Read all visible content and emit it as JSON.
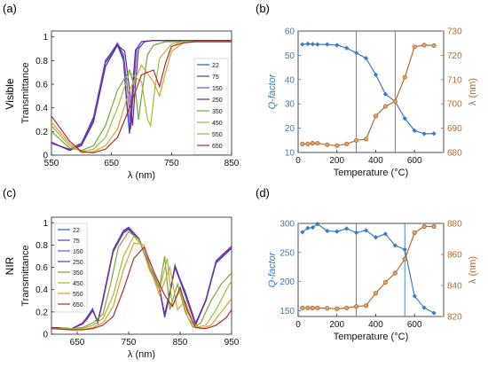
{
  "figure": {
    "row_labels": [
      "Visible",
      "NIR"
    ]
  },
  "chart_data": [
    {
      "panel": "(a)",
      "type": "line",
      "xlabel": "λ (nm)",
      "ylabel": "Transmittance",
      "xlim": [
        550,
        850
      ],
      "ylim": [
        0,
        1.05
      ],
      "xticks": [
        550,
        650,
        750,
        850
      ],
      "yticks": [
        0,
        0.2,
        0.4,
        0.6,
        0.8,
        1
      ],
      "ytick_labels": [
        "0",
        "0.2",
        "0.4",
        "0.6",
        "0.8",
        "1"
      ],
      "legend": "right",
      "series": [
        {
          "name": "22",
          "color": "#1f5fbf",
          "x": [
            550,
            580,
            600,
            620,
            640,
            660,
            670,
            675,
            680,
            685,
            690,
            700,
            720,
            750,
            800,
            850
          ],
          "y": [
            0.1,
            0.05,
            0.1,
            0.3,
            0.78,
            0.93,
            0.8,
            0.45,
            0.18,
            0.55,
            0.88,
            0.96,
            0.97,
            0.97,
            0.97,
            0.97
          ]
        },
        {
          "name": "75",
          "color": "#3f3f9f",
          "x": [
            550,
            580,
            600,
            620,
            640,
            660,
            670,
            675,
            680,
            685,
            690,
            700,
            720,
            750,
            800,
            850
          ],
          "y": [
            0.1,
            0.05,
            0.1,
            0.32,
            0.8,
            0.94,
            0.82,
            0.48,
            0.2,
            0.57,
            0.89,
            0.96,
            0.97,
            0.97,
            0.97,
            0.97
          ]
        },
        {
          "name": "150",
          "color": "#8a3fc8",
          "x": [
            550,
            580,
            600,
            620,
            640,
            660,
            670,
            678,
            682,
            687,
            692,
            700,
            720,
            750,
            800,
            850
          ],
          "y": [
            0.1,
            0.05,
            0.09,
            0.3,
            0.79,
            0.95,
            0.85,
            0.5,
            0.22,
            0.58,
            0.9,
            0.96,
            0.97,
            0.97,
            0.97,
            0.97
          ]
        },
        {
          "name": "250",
          "color": "#5a2b9a",
          "x": [
            550,
            580,
            600,
            620,
            640,
            660,
            672,
            680,
            685,
            690,
            695,
            705,
            720,
            750,
            800,
            850
          ],
          "y": [
            0.11,
            0.04,
            0.08,
            0.28,
            0.75,
            0.93,
            0.88,
            0.55,
            0.25,
            0.6,
            0.9,
            0.96,
            0.97,
            0.97,
            0.97,
            0.97
          ]
        },
        {
          "name": "350",
          "color": "#6fa83a",
          "x": [
            550,
            580,
            600,
            620,
            640,
            660,
            680,
            690,
            695,
            700,
            710,
            720,
            740,
            760,
            800,
            850
          ],
          "y": [
            0.2,
            0.06,
            0.04,
            0.08,
            0.25,
            0.55,
            0.72,
            0.55,
            0.3,
            0.5,
            0.85,
            0.93,
            0.96,
            0.96,
            0.96,
            0.96
          ]
        },
        {
          "name": "450",
          "color": "#a8b83a",
          "x": [
            550,
            580,
            600,
            620,
            640,
            660,
            680,
            700,
            710,
            715,
            722,
            730,
            750,
            770,
            800,
            850
          ],
          "y": [
            0.25,
            0.08,
            0.03,
            0.05,
            0.15,
            0.4,
            0.7,
            0.62,
            0.3,
            0.25,
            0.55,
            0.82,
            0.94,
            0.96,
            0.96,
            0.96
          ]
        },
        {
          "name": "550",
          "color": "#d8a02a",
          "x": [
            550,
            580,
            600,
            620,
            640,
            660,
            680,
            700,
            720,
            730,
            740,
            750,
            770,
            790,
            820,
            850
          ],
          "y": [
            0.28,
            0.1,
            0.02,
            0.03,
            0.08,
            0.22,
            0.55,
            0.76,
            0.62,
            0.5,
            0.7,
            0.88,
            0.95,
            0.96,
            0.96,
            0.96
          ]
        },
        {
          "name": "650",
          "color": "#b22a2a",
          "x": [
            550,
            580,
            600,
            620,
            640,
            660,
            680,
            700,
            720,
            730,
            740,
            750,
            770,
            790,
            820,
            850
          ],
          "y": [
            0.33,
            0.12,
            0.03,
            0.02,
            0.05,
            0.15,
            0.4,
            0.68,
            0.72,
            0.58,
            0.78,
            0.92,
            0.95,
            0.96,
            0.96,
            0.96
          ]
        }
      ]
    },
    {
      "panel": "(b)",
      "type": "line",
      "xlabel": "Temperature (°C)",
      "ylabel_left": "Q-factor",
      "ylabel_right": "λ (nm)",
      "xlim": [
        0,
        750
      ],
      "xticks": [
        0,
        200,
        400,
        600
      ],
      "ylim_left": [
        10,
        60
      ],
      "yticks_left": [
        10,
        20,
        30,
        40,
        50,
        60
      ],
      "ylim_right": [
        680,
        730
      ],
      "yticks_right": [
        680,
        690,
        700,
        710,
        720,
        730
      ],
      "vlines": [
        300,
        500
      ],
      "series": [
        {
          "name": "Q-factor",
          "axis": "left",
          "color": "#3a78c8",
          "marker": "diamond",
          "x": [
            22,
            50,
            75,
            100,
            150,
            200,
            250,
            300,
            350,
            400,
            450,
            500,
            550,
            600,
            650,
            700
          ],
          "y": [
            54.5,
            54.7,
            54.6,
            54.5,
            54.5,
            54.2,
            53.0,
            51.0,
            48.8,
            42.0,
            34.0,
            31.0,
            24.0,
            19.0,
            17.7,
            17.8
          ]
        },
        {
          "name": "λ",
          "axis": "right",
          "color": "#b86a2e",
          "marker": "circle",
          "x": [
            22,
            50,
            75,
            100,
            150,
            200,
            250,
            300,
            350,
            400,
            450,
            500,
            550,
            600,
            650,
            700
          ],
          "y": [
            683.5,
            683.5,
            683.8,
            683.8,
            683.2,
            682.8,
            683.5,
            685.0,
            685.5,
            695.0,
            699.0,
            701.0,
            711.0,
            723.5,
            724.2,
            724.0
          ]
        }
      ]
    },
    {
      "panel": "(c)",
      "type": "line",
      "xlabel": "λ (nm)",
      "ylabel": "Transmittance",
      "xlim": [
        600,
        950
      ],
      "ylim": [
        0,
        1.05
      ],
      "xticks": [
        650,
        750,
        850,
        950
      ],
      "yticks": [
        0,
        0.2,
        0.4,
        0.6,
        0.8,
        1
      ],
      "ytick_labels": [
        "0",
        "0.2",
        "0.4",
        "0.6",
        "0.8",
        "1"
      ],
      "legend": "upper-left",
      "series": [
        {
          "name": "22",
          "color": "#1f5fbf",
          "x": [
            600,
            640,
            660,
            670,
            680,
            690,
            700,
            720,
            740,
            750,
            770,
            790,
            810,
            820,
            830,
            840,
            860,
            880,
            900,
            920,
            950
          ],
          "y": [
            0.06,
            0.05,
            0.1,
            0.15,
            0.22,
            0.1,
            0.3,
            0.75,
            0.92,
            0.95,
            0.85,
            0.6,
            0.4,
            0.15,
            0.35,
            0.6,
            0.35,
            0.08,
            0.3,
            0.65,
            0.78
          ]
        },
        {
          "name": "75",
          "color": "#4a3fa8",
          "x": [
            600,
            640,
            660,
            670,
            680,
            690,
            700,
            720,
            740,
            750,
            770,
            790,
            810,
            820,
            830,
            840,
            860,
            880,
            900,
            920,
            950
          ],
          "y": [
            0.06,
            0.05,
            0.1,
            0.16,
            0.23,
            0.1,
            0.32,
            0.76,
            0.93,
            0.96,
            0.86,
            0.62,
            0.42,
            0.16,
            0.36,
            0.62,
            0.36,
            0.08,
            0.31,
            0.66,
            0.79
          ]
        },
        {
          "name": "150",
          "color": "#8a3fc8",
          "x": [
            600,
            640,
            660,
            670,
            680,
            690,
            700,
            720,
            740,
            750,
            770,
            790,
            810,
            820,
            830,
            840,
            860,
            880,
            900,
            920,
            950
          ],
          "y": [
            0.06,
            0.05,
            0.1,
            0.15,
            0.22,
            0.11,
            0.31,
            0.75,
            0.92,
            0.95,
            0.86,
            0.61,
            0.41,
            0.17,
            0.37,
            0.61,
            0.37,
            0.09,
            0.31,
            0.65,
            0.78
          ]
        },
        {
          "name": "250",
          "color": "#6a2e9e",
          "x": [
            600,
            640,
            660,
            670,
            680,
            690,
            700,
            720,
            740,
            750,
            770,
            790,
            810,
            820,
            830,
            840,
            860,
            880,
            900,
            920,
            950
          ],
          "y": [
            0.06,
            0.05,
            0.09,
            0.14,
            0.21,
            0.12,
            0.3,
            0.74,
            0.91,
            0.94,
            0.85,
            0.6,
            0.4,
            0.18,
            0.38,
            0.6,
            0.38,
            0.1,
            0.3,
            0.64,
            0.77
          ]
        },
        {
          "name": "350",
          "color": "#7aa83a",
          "x": [
            600,
            640,
            660,
            680,
            700,
            715,
            730,
            750,
            770,
            790,
            810,
            820,
            830,
            845,
            860,
            875,
            890,
            910,
            930,
            950
          ],
          "y": [
            0.05,
            0.05,
            0.06,
            0.1,
            0.18,
            0.45,
            0.78,
            0.92,
            0.85,
            0.6,
            0.42,
            0.7,
            0.22,
            0.45,
            0.2,
            0.06,
            0.1,
            0.3,
            0.45,
            0.55
          ]
        },
        {
          "name": "450",
          "color": "#a8b83a",
          "x": [
            600,
            640,
            660,
            680,
            700,
            720,
            740,
            760,
            775,
            790,
            810,
            825,
            835,
            850,
            865,
            880,
            900,
            920,
            940,
            950
          ],
          "y": [
            0.05,
            0.05,
            0.05,
            0.08,
            0.14,
            0.35,
            0.7,
            0.88,
            0.8,
            0.58,
            0.4,
            0.68,
            0.25,
            0.4,
            0.15,
            0.06,
            0.08,
            0.22,
            0.4,
            0.48
          ]
        },
        {
          "name": "550",
          "color": "#d8a02a",
          "x": [
            600,
            640,
            660,
            680,
            700,
            720,
            740,
            760,
            780,
            795,
            810,
            830,
            845,
            860,
            875,
            890,
            910,
            930,
            950
          ],
          "y": [
            0.05,
            0.04,
            0.04,
            0.06,
            0.1,
            0.25,
            0.58,
            0.82,
            0.8,
            0.55,
            0.35,
            0.6,
            0.22,
            0.3,
            0.1,
            0.05,
            0.08,
            0.2,
            0.32
          ]
        },
        {
          "name": "650",
          "color": "#b22a2a",
          "x": [
            600,
            640,
            660,
            680,
            700,
            720,
            740,
            760,
            780,
            800,
            820,
            835,
            850,
            865,
            880,
            900,
            920,
            940,
            950
          ],
          "y": [
            0.05,
            0.04,
            0.04,
            0.05,
            0.08,
            0.16,
            0.4,
            0.68,
            0.78,
            0.55,
            0.35,
            0.25,
            0.42,
            0.2,
            0.06,
            0.05,
            0.08,
            0.15,
            0.22
          ]
        }
      ]
    },
    {
      "panel": "(d)",
      "type": "line",
      "xlabel": "Temperature (°C)",
      "ylabel_left": "Q-factor",
      "ylabel_right": "λ (nm)",
      "xlim": [
        0,
        750
      ],
      "xticks": [
        0,
        200,
        400,
        600
      ],
      "ylim_left": [
        140,
        300
      ],
      "yticks_left": [
        150,
        200,
        250,
        300
      ],
      "ylim_right": [
        820,
        880
      ],
      "yticks_right": [
        820,
        840,
        860,
        880
      ],
      "vlines": [
        300,
        550
      ],
      "series": [
        {
          "name": "Q-factor",
          "axis": "left",
          "color": "#3a78c8",
          "marker": "diamond",
          "x": [
            22,
            50,
            75,
            100,
            150,
            200,
            250,
            300,
            350,
            400,
            450,
            500,
            550,
            600,
            650,
            700
          ],
          "y": [
            285,
            292,
            293,
            299,
            287,
            286,
            291,
            284,
            288,
            276,
            282,
            262,
            255,
            175,
            155,
            146
          ]
        },
        {
          "name": "λ",
          "axis": "right",
          "color": "#b86a2e",
          "marker": "circle",
          "x": [
            22,
            50,
            75,
            100,
            150,
            200,
            250,
            300,
            350,
            400,
            450,
            500,
            550,
            600,
            650,
            700
          ],
          "y": [
            825.5,
            825.5,
            825.5,
            825.5,
            825.3,
            825.0,
            825.5,
            826.5,
            827.0,
            835.0,
            842.0,
            848.0,
            857.0,
            874.0,
            878.0,
            878.0
          ]
        }
      ]
    }
  ]
}
